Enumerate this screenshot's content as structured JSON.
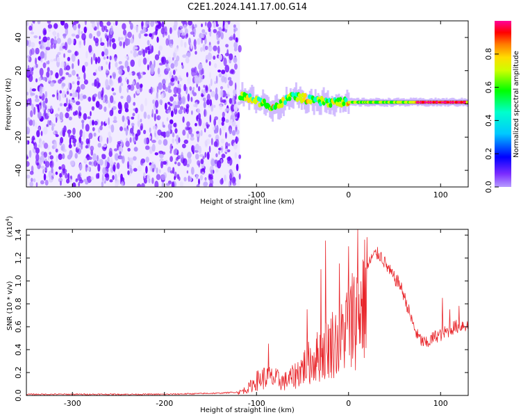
{
  "title": "C2E1.2024.141.17.00.G14",
  "chart_data": [
    {
      "type": "heatmap",
      "xlabel": "Height of straight line (km)",
      "ylabel": "Frequency (Hz)",
      "xlim": [
        -350,
        130
      ],
      "ylim": [
        -50,
        50
      ],
      "xticks": [
        -300,
        -200,
        -100,
        0,
        100
      ],
      "yticks": [
        -40,
        -20,
        0,
        20,
        40
      ],
      "colorbar": {
        "label": "Normalized spectral amplitude",
        "range": [
          0.0,
          1.0
        ],
        "ticks": [
          "0.0",
          "0.2",
          "0.4",
          "0.6",
          "0.8"
        ],
        "colormap": "rainbow (violet to magenta)"
      },
      "features": {
        "noise_region_x": [
          -350,
          -118
        ],
        "noise_level": "0.0-0.2",
        "signal_start_x": -118,
        "signal_center_hz": [
          [
            -118,
            5
          ],
          [
            -100,
            2
          ],
          [
            -80,
            -2
          ],
          [
            -60,
            5
          ],
          [
            -40,
            2
          ],
          [
            -20,
            1
          ],
          [
            0,
            1
          ],
          [
            50,
            1
          ],
          [
            130,
            1
          ]
        ],
        "signal_peak_level": "0.8-1.0"
      }
    },
    {
      "type": "line",
      "xlabel": "Height of straight line (km)",
      "ylabel": "SNR (10 * v/v)",
      "ylabel_scale": "(x10",
      "ylabel_scale_exp": "4",
      "ylabel_scale_close": ")",
      "xlim": [
        -350,
        130
      ],
      "ylim": [
        0.0,
        1.45
      ],
      "xticks": [
        -300,
        -200,
        -100,
        0,
        100
      ],
      "yticks": [
        "0.0",
        "0.2",
        "0.4",
        "0.6",
        "0.8",
        "1.0",
        "1.2",
        "1.4"
      ],
      "series": [
        {
          "color": "#e8252a",
          "envelope_points": [
            [
              -350,
              0.01
            ],
            [
              -200,
              0.01
            ],
            [
              -140,
              0.02
            ],
            [
              -120,
              0.03
            ],
            [
              -110,
              0.07
            ],
            [
              -100,
              0.16
            ],
            [
              -90,
              0.2
            ],
            [
              -80,
              0.18
            ],
            [
              -70,
              0.15
            ],
            [
              -60,
              0.2
            ],
            [
              -50,
              0.3
            ],
            [
              -40,
              0.38
            ],
            [
              -30,
              0.45
            ],
            [
              -20,
              0.55
            ],
            [
              -15,
              0.6
            ],
            [
              -10,
              0.55
            ],
            [
              -5,
              0.7
            ],
            [
              0,
              0.78
            ],
            [
              5,
              0.85
            ],
            [
              10,
              0.9
            ],
            [
              15,
              1.0
            ],
            [
              20,
              1.1
            ],
            [
              25,
              1.2
            ],
            [
              30,
              1.24
            ],
            [
              35,
              1.22
            ],
            [
              40,
              1.15
            ],
            [
              45,
              1.08
            ],
            [
              50,
              1.02
            ],
            [
              55,
              0.98
            ],
            [
              60,
              0.88
            ],
            [
              65,
              0.75
            ],
            [
              70,
              0.62
            ],
            [
              75,
              0.52
            ],
            [
              80,
              0.47
            ],
            [
              85,
              0.45
            ],
            [
              90,
              0.49
            ],
            [
              95,
              0.52
            ],
            [
              100,
              0.53
            ],
            [
              105,
              0.55
            ],
            [
              110,
              0.57
            ],
            [
              115,
              0.6
            ],
            [
              120,
              0.6
            ],
            [
              125,
              0.62
            ],
            [
              130,
              0.6
            ]
          ],
          "spikes": [
            [
              -87,
              0.45
            ],
            [
              -45,
              0.75
            ],
            [
              -30,
              1.1
            ],
            [
              -25,
              1.35
            ],
            [
              -17,
              0.6
            ],
            [
              -10,
              1.15
            ],
            [
              0,
              1.3
            ],
            [
              3,
              0.25
            ],
            [
              10,
              1.45
            ],
            [
              20,
              1.38
            ],
            [
              102,
              0.85
            ],
            [
              110,
              0.75
            ],
            [
              120,
              0.78
            ]
          ]
        }
      ]
    }
  ]
}
